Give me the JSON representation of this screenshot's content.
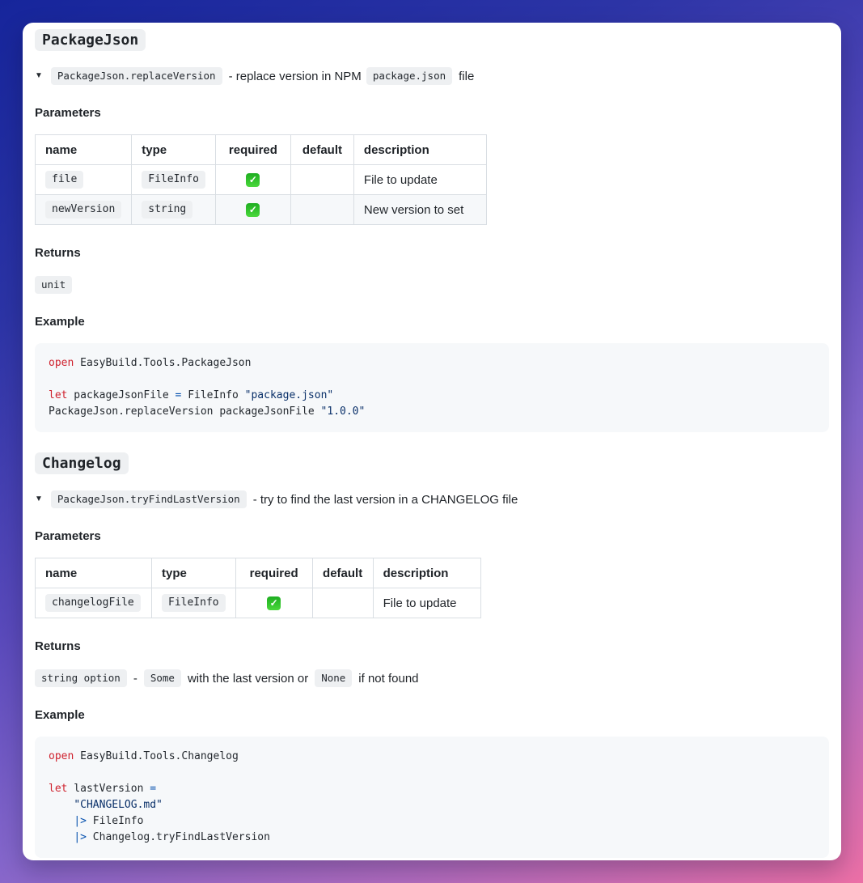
{
  "sections": [
    {
      "title": "PackageJson",
      "summary": {
        "toggle_icon": "▼",
        "code": "PackageJson.replaceVersion",
        "text_mid": "- replace version in NPM",
        "inline_code": "package.json",
        "text_end": "file"
      },
      "parameters_label": "Parameters",
      "table": {
        "headers": [
          "name",
          "type",
          "required",
          "default",
          "description"
        ],
        "rows": [
          {
            "name": "file",
            "type": "FileInfo",
            "required_icon": "✓",
            "default": "",
            "description": "File to update"
          },
          {
            "name": "newVersion",
            "type": "string",
            "required_icon": "✓",
            "default": "",
            "description": "New version to set"
          }
        ]
      },
      "returns_label": "Returns",
      "returns": {
        "code": "unit"
      },
      "example_label": "Example",
      "code": {
        "lines": [
          [
            {
              "c": "k",
              "t": "open"
            },
            {
              "c": "p",
              "t": " EasyBuild.Tools.PackageJson"
            }
          ],
          [],
          [
            {
              "c": "k",
              "t": "let"
            },
            {
              "c": "p",
              "t": " packageJsonFile "
            },
            {
              "c": "o",
              "t": "="
            },
            {
              "c": "p",
              "t": " FileInfo "
            },
            {
              "c": "s",
              "t": "\"package.json\""
            }
          ],
          [
            {
              "c": "p",
              "t": "PackageJson.replaceVersion packageJsonFile "
            },
            {
              "c": "s",
              "t": "\"1.0.0\""
            }
          ]
        ]
      }
    },
    {
      "title": "Changelog",
      "summary": {
        "toggle_icon": "▼",
        "code": "PackageJson.tryFindLastVersion",
        "text_mid": "- try to find the last version in a CHANGELOG file"
      },
      "parameters_label": "Parameters",
      "table": {
        "headers": [
          "name",
          "type",
          "required",
          "default",
          "description"
        ],
        "rows": [
          {
            "name": "changelogFile",
            "type": "FileInfo",
            "required_icon": "✓",
            "default": "",
            "description": "File to update"
          }
        ]
      },
      "returns_label": "Returns",
      "returns": {
        "code": "string option",
        "dash": "-",
        "code2": "Some",
        "text_mid": "with the last version or",
        "code3": "None",
        "text_end": "if not found"
      },
      "example_label": "Example",
      "code": {
        "lines": [
          [
            {
              "c": "k",
              "t": "open"
            },
            {
              "c": "p",
              "t": " EasyBuild.Tools.Changelog"
            }
          ],
          [],
          [
            {
              "c": "k",
              "t": "let"
            },
            {
              "c": "p",
              "t": " lastVersion "
            },
            {
              "c": "o",
              "t": "="
            }
          ],
          [
            {
              "c": "p",
              "t": "    "
            },
            {
              "c": "s",
              "t": "\"CHANGELOG.md\""
            }
          ],
          [
            {
              "c": "p",
              "t": "    "
            },
            {
              "c": "o",
              "t": "|>"
            },
            {
              "c": "p",
              "t": " FileInfo"
            }
          ],
          [
            {
              "c": "p",
              "t": "    "
            },
            {
              "c": "o",
              "t": "|>"
            },
            {
              "c": "p",
              "t": " Changelog.tryFindLastVersion"
            }
          ]
        ]
      }
    }
  ]
}
